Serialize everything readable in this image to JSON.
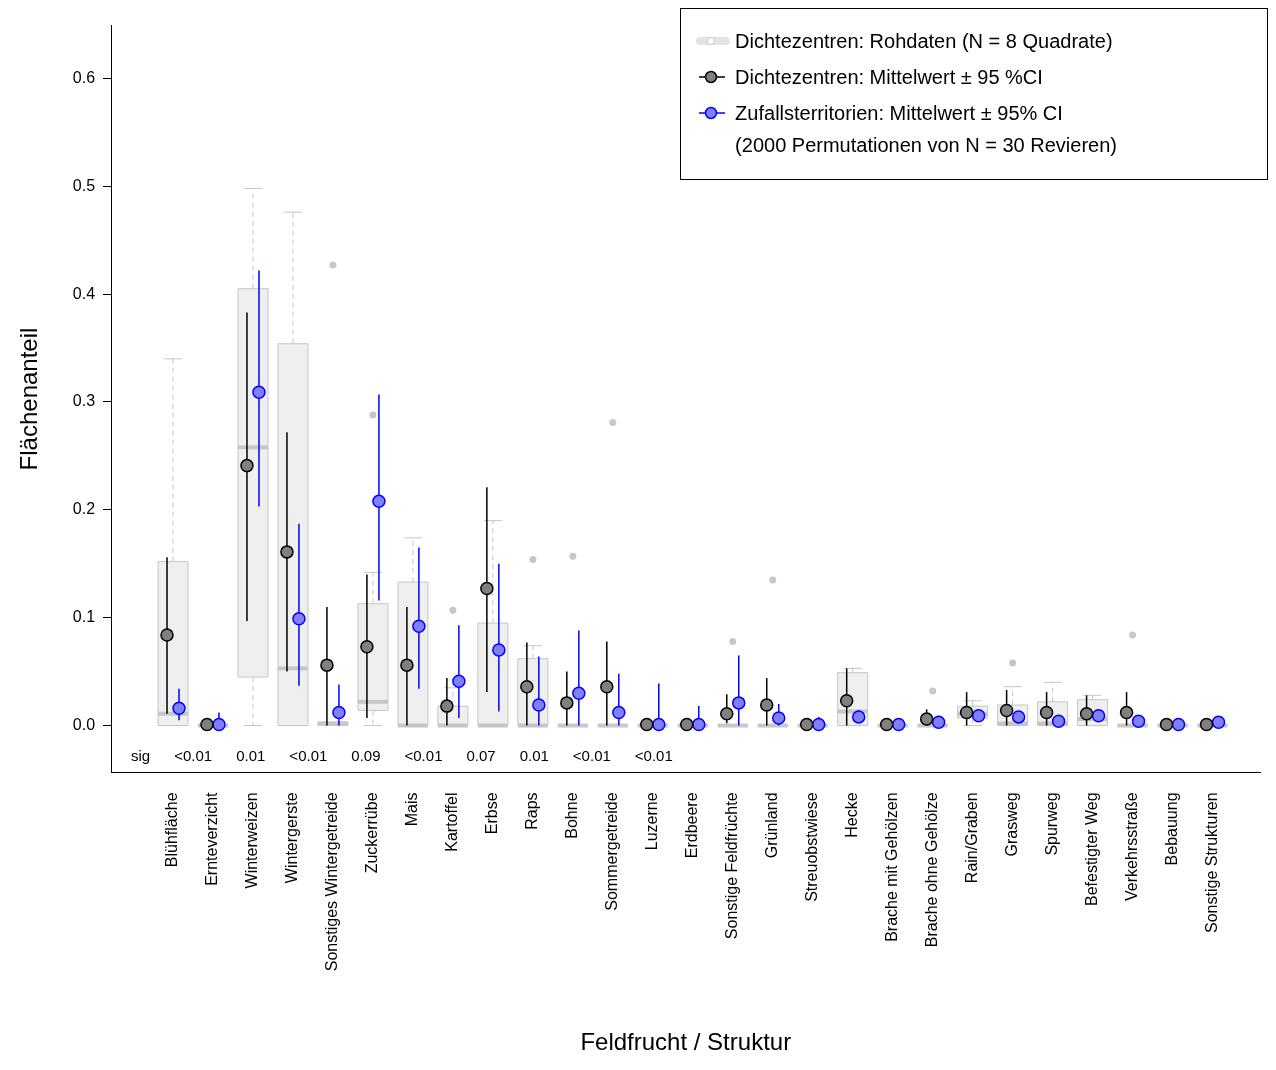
{
  "chart_data": {
    "type": "scatter",
    "xlabel": "Feldfrucht / Struktur",
    "ylabel": "Flächenanteil",
    "categories": [
      "Blühfläche",
      "Ernteverzicht",
      "Winterweizen",
      "Wintergerste",
      "Sonstiges Wintergetreide",
      "Zuckerrübe",
      "Mais",
      "Kartoffel",
      "Erbse",
      "Raps",
      "Bohne",
      "Sommergetreide",
      "Luzerne",
      "Erdbeere",
      "Sonstige Feldfrüchte",
      "Grünland",
      "Streuobstwiese",
      "Hecke",
      "Brache mit Gehölzen",
      "Brache ohne Gehölze",
      "Rain/Graben",
      "Grasweg",
      "Spurweg",
      "Befestigter Weg",
      "Verkehrsstraße",
      "Bebauung",
      "Sonstige Strukturen"
    ],
    "ylim": [
      -0.0435,
      0.649
    ],
    "yticks": [
      {
        "value": 0,
        "label": "0.0"
      },
      0.1,
      0.2,
      0.3,
      0.4,
      0.5,
      0.6
    ],
    "legend": "top right",
    "marker": "circle",
    "grid": false,
    "series": [
      {
        "name": "Dichtezentren: Rohdaten (N = 8 Quadrate)",
        "type": "box",
        "color": "#efefef",
        "colors": [
          "#efefef",
          "#c8c8c8",
          "#efefef",
          "#efefef",
          "#c8c8c8",
          "#efefef",
          "#efefef",
          "#efefef",
          "#efefef",
          "#efefef",
          "#c8c8c8",
          "#c8c8c8",
          "#c8c8c8",
          "#c8c8c8",
          "#c8c8c8",
          "#c8c8c8",
          "#c8c8c8",
          "#efefef",
          "#c8c8c8",
          "#c8c8c8",
          "#efefef",
          "#efefef",
          "#efefef",
          "#efefef",
          "#c8c8c8",
          "#c8c8c8",
          "#c8c8c8"
        ],
        "boxes": [
          {
            "low": 0,
            "q1": 0,
            "median": 0.011,
            "q3": 0.152,
            "high": 0.34
          },
          {
            "low": 0,
            "q1": 0,
            "median": 0,
            "q3": 0,
            "high": 0
          },
          {
            "low": 0,
            "q1": 0.045,
            "median": 0.258,
            "q3": 0.405,
            "high": 0.498
          },
          {
            "low": 0,
            "q1": 0,
            "median": 0.053,
            "q3": 0.354,
            "high": 0.476
          },
          {
            "low": 0,
            "q1": 0,
            "median": 0.002,
            "q3": 0.003,
            "high": 0.003,
            "outliers": [
              0.427
            ]
          },
          {
            "low": 0,
            "q1": 0.014,
            "median": 0.022,
            "q3": 0.113,
            "high": 0.142,
            "outliers": [
              0.288
            ]
          },
          {
            "low": 0,
            "q1": 0,
            "median": 0,
            "q3": 0.133,
            "high": 0.174
          },
          {
            "low": 0,
            "q1": 0,
            "median": 0,
            "q3": 0.018,
            "high": 0.035,
            "outliers": [
              0.107
            ]
          },
          {
            "low": 0,
            "q1": 0,
            "median": 0,
            "q3": 0.095,
            "high": 0.19
          },
          {
            "low": 0,
            "q1": 0,
            "median": 0,
            "q3": 0.062,
            "high": 0.074,
            "outliers": [
              0.154
            ]
          },
          {
            "low": 0,
            "q1": 0,
            "median": 0,
            "q3": 0,
            "high": 0,
            "outliers": [
              0.157
            ]
          },
          {
            "low": 0,
            "q1": 0,
            "median": 0,
            "q3": 0,
            "high": 0,
            "outliers": [
              0.281
            ]
          },
          {
            "low": 0,
            "q1": 0,
            "median": 0,
            "q3": 0,
            "high": 0
          },
          {
            "low": 0,
            "q1": 0,
            "median": 0,
            "q3": 0,
            "high": 0
          },
          {
            "low": 0,
            "q1": 0,
            "median": 0,
            "q3": 0,
            "high": 0,
            "outliers": [
              0.078
            ]
          },
          {
            "low": 0,
            "q1": 0,
            "median": 0,
            "q3": 0,
            "high": 0,
            "outliers": [
              0.135
            ]
          },
          {
            "low": 0,
            "q1": 0,
            "median": 0,
            "q3": 0,
            "high": 0
          },
          {
            "low": 0,
            "q1": 0,
            "median": 0.013,
            "q3": 0.049,
            "high": 0.053
          },
          {
            "low": 0,
            "q1": 0,
            "median": 0,
            "q3": 0,
            "high": 0
          },
          {
            "low": 0,
            "q1": 0,
            "median": 0,
            "q3": 0,
            "high": 0,
            "outliers": [
              0.032
            ]
          },
          {
            "low": 0,
            "q1": 0.007,
            "median": 0.011,
            "q3": 0.018,
            "high": 0.023
          },
          {
            "low": 0,
            "q1": 0,
            "median": 0.002,
            "q3": 0.019,
            "high": 0.036,
            "outliers": [
              0.058
            ]
          },
          {
            "low": 0,
            "q1": 0,
            "median": 0.002,
            "q3": 0.022,
            "high": 0.04
          },
          {
            "low": 0,
            "q1": 0,
            "median": 0.006,
            "q3": 0.024,
            "high": 0.028
          },
          {
            "low": 0,
            "q1": 0,
            "median": 0,
            "q3": 0,
            "high": 0,
            "outliers": [
              0.084
            ]
          },
          {
            "low": 0,
            "q1": 0,
            "median": 0,
            "q3": 0,
            "high": 0
          },
          {
            "low": 0,
            "q1": 0,
            "median": 0,
            "q3": 0,
            "high": 0
          }
        ]
      },
      {
        "name": "Dichtezentren: Mittelwert ± 95 %CI",
        "color": "#000000",
        "values": [
          0.084,
          0.001,
          0.241,
          0.161,
          0.056,
          0.073,
          0.056,
          0.018,
          0.127,
          0.036,
          0.021,
          0.036,
          0.001,
          0.001,
          0.011,
          0.019,
          0.001,
          0.023,
          0.001,
          0.006,
          0.012,
          0.014,
          0.012,
          0.011,
          0.012,
          0.001,
          0.001
        ],
        "errors": [
          [
            0.011,
            0.156
          ],
          null,
          [
            0.097,
            0.383
          ],
          [
            0.05,
            0.272
          ],
          [
            0,
            0.11
          ],
          [
            0.007,
            0.14
          ],
          [
            0,
            0.11
          ],
          [
            0,
            0.044
          ],
          [
            0.031,
            0.221
          ],
          [
            0,
            0.077
          ],
          [
            0,
            0.05
          ],
          [
            0,
            0.078
          ],
          null,
          null,
          [
            0.002,
            0.029
          ],
          [
            0,
            0.044
          ],
          null,
          [
            0,
            0.053
          ],
          null,
          [
            0,
            0.015
          ],
          [
            0,
            0.031
          ],
          [
            0,
            0.033
          ],
          [
            0,
            0.031
          ],
          [
            0,
            0.028
          ],
          [
            0,
            0.031
          ],
          null,
          null
        ]
      },
      {
        "name": "Zufallsterritorien: Mittelwert ± 95% CI\n(2000 Permutationen von N = 30 Revieren)",
        "color": "#0000ff",
        "values": [
          0.016,
          0.001,
          0.309,
          0.099,
          0.012,
          0.208,
          0.092,
          0.041,
          0.07,
          0.019,
          0.03,
          0.012,
          0.001,
          0.001,
          0.021,
          0.007,
          0.001,
          0.008,
          0.001,
          0.003,
          0.009,
          0.008,
          0.004,
          0.009,
          0.004,
          0.001,
          0.003
        ],
        "errors": [
          [
            0.005,
            0.034
          ],
          [
            0,
            0.012
          ],
          [
            0.203,
            0.422
          ],
          [
            0.037,
            0.187
          ],
          [
            0,
            0.038
          ],
          [
            0.116,
            0.307
          ],
          [
            0.034,
            0.165
          ],
          [
            0.007,
            0.093
          ],
          [
            0.013,
            0.15
          ],
          [
            0,
            0.064
          ],
          [
            0,
            0.088
          ],
          [
            0,
            0.048
          ],
          [
            0,
            0.039
          ],
          [
            0,
            0.018
          ],
          [
            0,
            0.065
          ],
          [
            0,
            0.02
          ],
          [
            0,
            0.008
          ],
          [
            0.003,
            0.014
          ],
          null,
          [
            0,
            0.009
          ],
          null,
          null,
          null,
          null,
          null,
          null,
          null
        ]
      }
    ],
    "annotations": [
      "sig",
      "<0.01",
      "0.01",
      "<0.01",
      "0.09",
      "<0.01",
      "0.07",
      "0.01",
      "<0.01",
      "<0.01"
    ]
  }
}
